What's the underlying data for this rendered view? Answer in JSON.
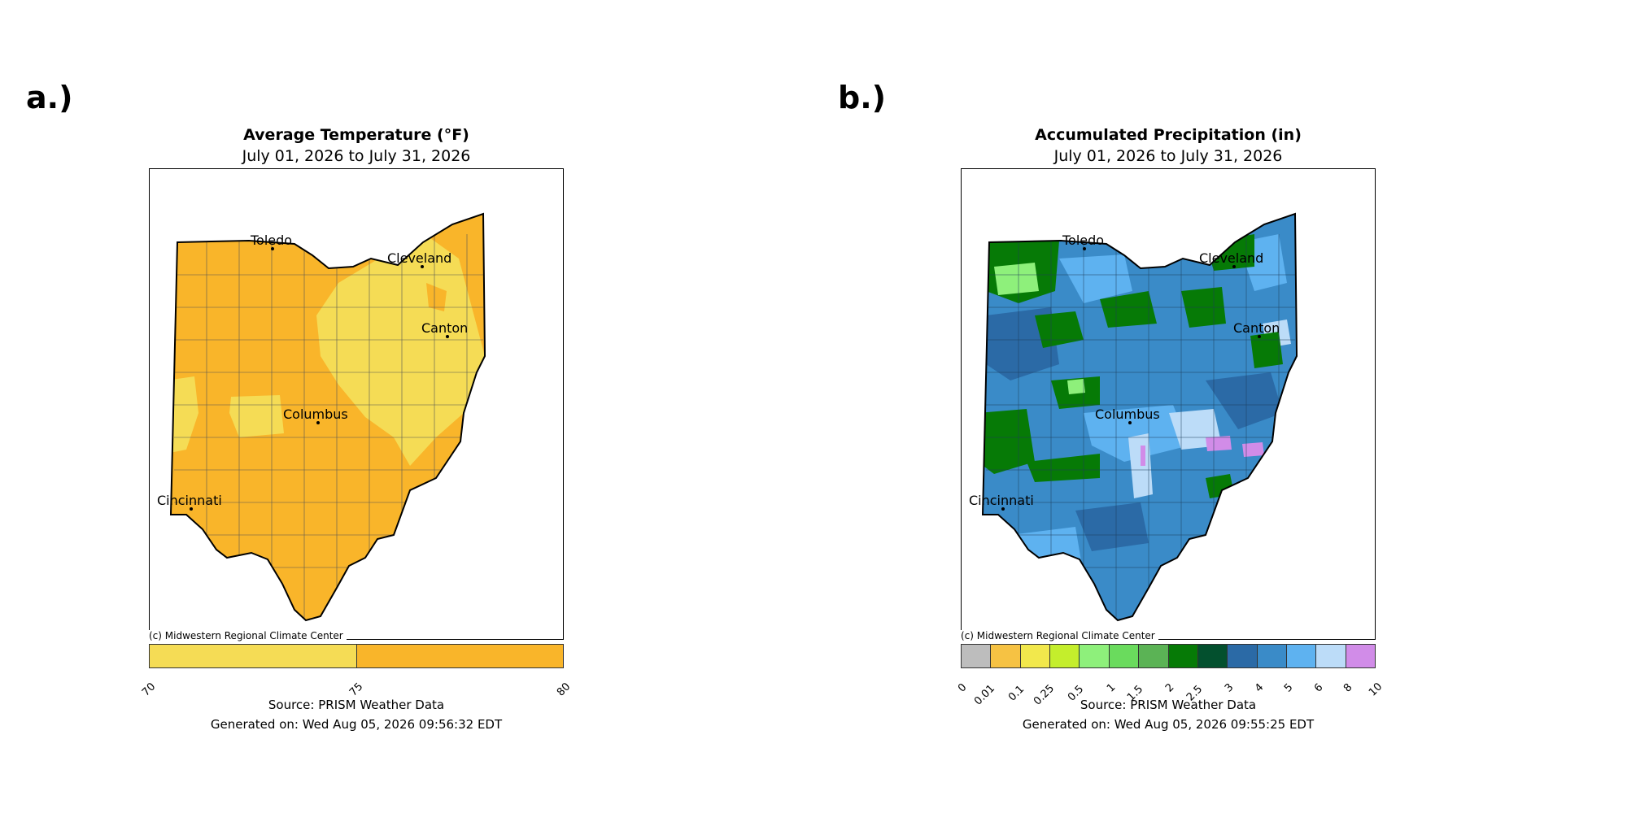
{
  "panels": {
    "a": {
      "label": "a.)",
      "title": "Average Temperature (°F)",
      "subtitle": "July 01, 2026 to July 31, 2026",
      "credit": "(c) Midwestern Regional Climate Center",
      "source": "Source: PRISM Weather Data",
      "generated": "Generated on: Wed Aug 05, 2026 09:56:32 EDT",
      "colorbar": {
        "ticks": [
          "70",
          "75",
          "80"
        ],
        "colors": [
          "#f5dc55",
          "#f9b52a"
        ]
      },
      "base_color": "#f9b52a",
      "region_color": "#f5dc55"
    },
    "b": {
      "label": "b.)",
      "title": "Accumulated Precipitation (in)",
      "subtitle": "July 01, 2026 to July 31, 2026",
      "credit": "(c) Midwestern Regional Climate Center",
      "source": "Source: PRISM Weather Data",
      "generated": "Generated on: Wed Aug 05, 2026 09:55:25 EDT",
      "colorbar": {
        "ticks": [
          "0",
          "0.01",
          "0.1",
          "0.25",
          "0.5",
          "1",
          "1.5",
          "2",
          "2.5",
          "3",
          "4",
          "5",
          "6",
          "8",
          "10"
        ],
        "colors": [
          "#bdbdbd",
          "#f6c243",
          "#f2e84c",
          "#c4ee2c",
          "#8ef07b",
          "#6adb5d",
          "#5bb355",
          "#067a06",
          "#03502e",
          "#2b6aa6",
          "#3a8bc8",
          "#5eb2f0",
          "#bcdcf8",
          "#d18ce8"
        ]
      },
      "base_color": "#3a8bc8"
    }
  },
  "cities": [
    "Toledo",
    "Cleveland",
    "Canton",
    "Columbus",
    "Cincinnati"
  ]
}
